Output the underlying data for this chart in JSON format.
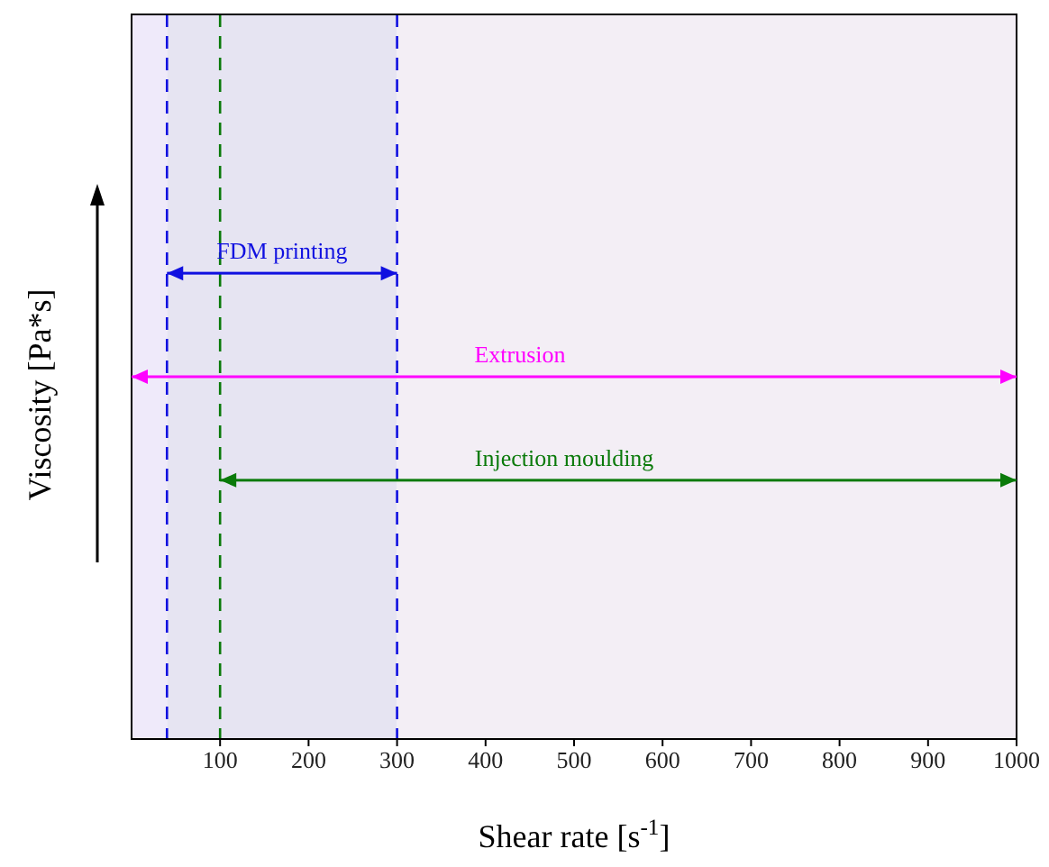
{
  "chart_data": {
    "type": "bar",
    "orientation": "horizontal",
    "xlabel": "Shear rate [s$^{-1}$]",
    "ylabel": "Viscosity [Pa*s]",
    "categories": [
      null,
      null,
      null,
      null,
      null,
      null,
      null
    ],
    "xlim": [
      0,
      1000
    ],
    "xticks": [
      100,
      200,
      300,
      400,
      500,
      600,
      700,
      800,
      900,
      1000
    ],
    "tick_labels": "x",
    "series": [
      {
        "name": "FDM printing",
        "color": "#1010e0",
        "values": [
          null,
          null,
          260,
          null,
          null,
          null,
          null
        ],
        "base": [
          null,
          null,
          40,
          null,
          null,
          null,
          null
        ]
      },
      {
        "name": "Extrusion",
        "color": "#ff00ff",
        "values": [
          null,
          null,
          null,
          1000,
          null,
          null,
          null
        ],
        "base": [
          null,
          null,
          null,
          0,
          null,
          null,
          null
        ]
      },
      {
        "name": "Injection moulding",
        "color": "#0a7a0a",
        "values": [
          null,
          null,
          null,
          null,
          900,
          null,
          null
        ],
        "base": [
          null,
          null,
          null,
          null,
          100,
          null,
          null
        ]
      }
    ],
    "bands": [
      {
        "axis": "x",
        "from": 0,
        "to": 40,
        "color": "#efeafa"
      },
      {
        "axis": "x",
        "from": 40,
        "to": 300,
        "color": "#e6e4f2"
      },
      {
        "axis": "x",
        "from": 300,
        "to": 1000,
        "color": "#f3eef5"
      }
    ],
    "ref_lines": [
      {
        "axis": "x",
        "value": 40,
        "color": "#1010e0",
        "line_style": "dashed"
      },
      {
        "axis": "x",
        "value": 100,
        "color": "#0a7a0a",
        "line_style": "dashed"
      },
      {
        "axis": "x",
        "value": 300,
        "color": "#1010e0",
        "line_style": "dashed"
      }
    ]
  }
}
